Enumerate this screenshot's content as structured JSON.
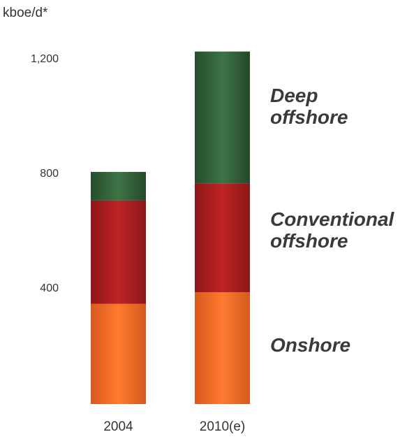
{
  "chart_data": {
    "type": "stacked-bar",
    "ylabel": "kboe/d*",
    "yticks": [
      {
        "value": 400,
        "label": "400"
      },
      {
        "value": 800,
        "label": "800"
      },
      {
        "value": 1200,
        "label": "1,200"
      }
    ],
    "ylim": [
      0,
      1250
    ],
    "grid": false,
    "legend": "right",
    "categories": [
      "2004",
      "2010(e)"
    ],
    "series": [
      {
        "name": "Onshore",
        "values": [
          350,
          390
        ],
        "color": "#f26b26"
      },
      {
        "name": "Conventional offshore",
        "values": [
          360,
          380
        ],
        "color": "#a81e22"
      },
      {
        "name": "Deep offshore",
        "values": [
          100,
          460
        ],
        "color": "#2f5e36"
      }
    ],
    "series_labels": [
      {
        "lines": [
          "Deep",
          "offshore"
        ]
      },
      {
        "lines": [
          "Conventional",
          "offshore"
        ]
      },
      {
        "lines": [
          "Onshore"
        ]
      }
    ]
  }
}
